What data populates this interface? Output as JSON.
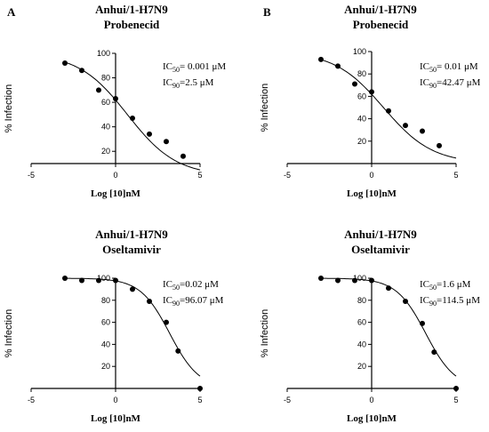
{
  "chart_data": [
    {
      "type": "scatter",
      "panel_letter": "A",
      "title": "Anhui/1-H7N9",
      "subtitle": "Probenecid",
      "xlabel": "Log [10]nM",
      "ylabel": "% Infection",
      "xlim": [
        -5,
        5
      ],
      "ylim": [
        10,
        100
      ],
      "x_ticks": [
        "-5",
        "0",
        "5"
      ],
      "y_ticks": [
        "20",
        "40",
        "60",
        "80",
        "100"
      ],
      "annotations": [
        {
          "prefix": "IC",
          "sub": "50",
          "text": "= 0.001 μM"
        },
        {
          "prefix": "IC",
          "sub": "90",
          "text": "=2.5 μM"
        }
      ],
      "points": [
        {
          "x": -3,
          "y": 92
        },
        {
          "x": -2,
          "y": 86
        },
        {
          "x": -1,
          "y": 70
        },
        {
          "x": 0,
          "y": 63
        },
        {
          "x": 1,
          "y": 47
        },
        {
          "x": 2,
          "y": 34
        },
        {
          "x": 3,
          "y": 28
        },
        {
          "x": 4,
          "y": 16
        }
      ],
      "fit": {
        "top": 100,
        "bottom": 0,
        "logEC50": 0.7,
        "hill": 0.3,
        "x_range": [
          -3,
          5
        ]
      }
    },
    {
      "type": "scatter",
      "panel_letter": "B",
      "title": "Anhui/1-H7N9",
      "subtitle": "Probenecid",
      "xlabel": "Log [10]nM",
      "ylabel": "% Infection",
      "xlim": [
        -5,
        5
      ],
      "ylim": [
        0,
        100
      ],
      "x_ticks": [
        "-5",
        "0",
        "5"
      ],
      "y_ticks": [
        "20",
        "40",
        "60",
        "80",
        "100"
      ],
      "annotations": [
        {
          "prefix": "IC",
          "sub": "50",
          "text": "= 0.01 μM"
        },
        {
          "prefix": "IC",
          "sub": "90",
          "text": "=42.47 μM"
        }
      ],
      "points": [
        {
          "x": -3,
          "y": 93
        },
        {
          "x": -2,
          "y": 87
        },
        {
          "x": -1,
          "y": 71
        },
        {
          "x": 0,
          "y": 64
        },
        {
          "x": 1,
          "y": 47
        },
        {
          "x": 2,
          "y": 34
        },
        {
          "x": 3,
          "y": 29
        },
        {
          "x": 4,
          "y": 16
        }
      ],
      "fit": {
        "top": 100,
        "bottom": 0,
        "logEC50": 0.7,
        "hill": 0.3,
        "x_range": [
          -3,
          5
        ]
      }
    },
    {
      "type": "scatter",
      "title": "Anhui/1-H7N9",
      "subtitle": "Oseltamivir",
      "xlabel": "Log [10]nM",
      "ylabel": "% Infection",
      "xlim": [
        -5,
        5
      ],
      "ylim": [
        0,
        100
      ],
      "x_ticks": [
        "-5",
        "0",
        "5"
      ],
      "y_ticks": [
        "20",
        "40",
        "60",
        "80",
        "100"
      ],
      "annotations": [
        {
          "prefix": "IC",
          "sub": "50",
          "text": "=0.02 μM"
        },
        {
          "prefix": "IC",
          "sub": "90",
          "text": "=96.07 μM"
        }
      ],
      "points": [
        {
          "x": -3,
          "y": 100
        },
        {
          "x": -2,
          "y": 98
        },
        {
          "x": -1,
          "y": 98
        },
        {
          "x": 0,
          "y": 98
        },
        {
          "x": 1,
          "y": 90
        },
        {
          "x": 2,
          "y": 79
        },
        {
          "x": 3,
          "y": 60
        },
        {
          "x": 3.7,
          "y": 34
        },
        {
          "x": 5,
          "y": 0
        }
      ],
      "fit": {
        "top": 100,
        "bottom": 0,
        "logEC50": 3.2,
        "hill": 0.5,
        "x_range": [
          -3,
          5
        ]
      }
    },
    {
      "type": "scatter",
      "title": "Anhui/1-H7N9",
      "subtitle": "Oseltamivir",
      "xlabel": "Log [10]nM",
      "ylabel": "% Infection",
      "xlim": [
        -5,
        5
      ],
      "ylim": [
        0,
        100
      ],
      "x_ticks": [
        "-5",
        "0",
        "5"
      ],
      "y_ticks": [
        "20",
        "40",
        "60",
        "80",
        "100"
      ],
      "annotations": [
        {
          "prefix": "IC",
          "sub": "50",
          "text": "=1.6 μM"
        },
        {
          "prefix": "IC",
          "sub": "90",
          "text": "=114.5 μM"
        }
      ],
      "points": [
        {
          "x": -3,
          "y": 100
        },
        {
          "x": -2,
          "y": 98
        },
        {
          "x": -1,
          "y": 98
        },
        {
          "x": 0,
          "y": 98
        },
        {
          "x": 1,
          "y": 91
        },
        {
          "x": 2,
          "y": 79
        },
        {
          "x": 3,
          "y": 59
        },
        {
          "x": 3.7,
          "y": 33
        },
        {
          "x": 5,
          "y": 0
        }
      ],
      "fit": {
        "top": 100,
        "bottom": 0,
        "logEC50": 3.2,
        "hill": 0.5,
        "x_range": [
          -3,
          5
        ]
      }
    }
  ]
}
